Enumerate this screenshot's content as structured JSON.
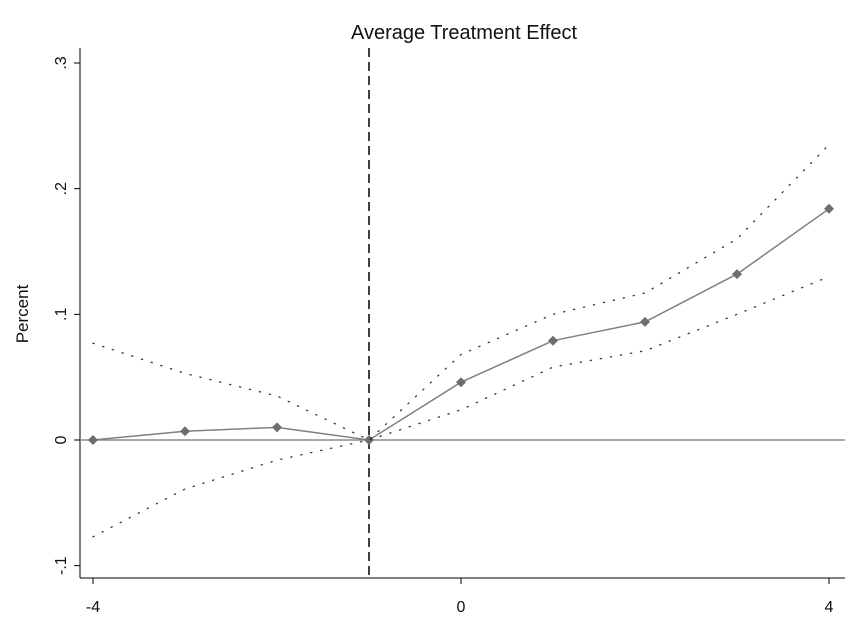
{
  "chart_data": {
    "type": "line",
    "title": "Average Treatment Effect",
    "xlabel": "",
    "ylabel": "Percent",
    "xlim": [
      -4,
      4
    ],
    "ylim": [
      -0.1,
      0.3
    ],
    "x_ticks": [
      {
        "value": -4,
        "label": "-4"
      },
      {
        "value": 0,
        "label": "0"
      },
      {
        "value": 4,
        "label": "4"
      }
    ],
    "y_ticks": [
      {
        "value": -0.1,
        "label": "-.1"
      },
      {
        "value": 0,
        "label": "0"
      },
      {
        "value": 0.1,
        "label": ".1"
      },
      {
        "value": 0.2,
        "label": ".2"
      },
      {
        "value": 0.3,
        "label": ".3"
      }
    ],
    "reference_lines": {
      "vertical_x": -1,
      "vertical_style": "dashed",
      "horizontal_y": 0
    },
    "grid": false,
    "legend": "none",
    "series": [
      {
        "role": "estimate",
        "style": "solid-with-diamond-markers",
        "x": [
          -4,
          -3,
          -2,
          -1,
          0,
          1,
          2,
          3,
          4
        ],
        "y": [
          0.0,
          0.007,
          0.01,
          0.0,
          0.046,
          0.079,
          0.094,
          0.132,
          0.184
        ]
      },
      {
        "role": "upper-ci",
        "style": "dotted",
        "x": [
          -4,
          -3,
          -2,
          -1,
          0,
          1,
          2,
          3,
          4
        ],
        "y": [
          0.077,
          0.053,
          0.035,
          0.0,
          0.068,
          0.1,
          0.117,
          0.16,
          0.235
        ]
      },
      {
        "role": "lower-ci",
        "style": "dotted",
        "x": [
          -4,
          -3,
          -2,
          -1,
          0,
          1,
          2,
          3,
          4
        ],
        "y": [
          -0.077,
          -0.039,
          -0.016,
          0.0,
          0.024,
          0.058,
          0.071,
          0.1,
          0.13
        ]
      }
    ],
    "colors": {
      "line": "#808080",
      "marker": "#6e6e6e",
      "axis": "#000000",
      "dotted": "#333333",
      "zero_line": "#8c8c8c"
    }
  }
}
